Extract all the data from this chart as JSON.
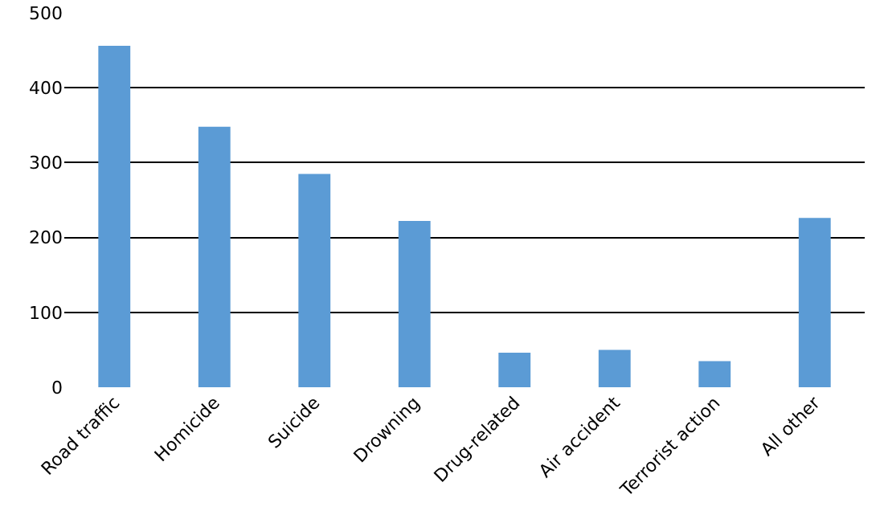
{
  "chart_data": {
    "type": "bar",
    "categories": [
      "Road traffic",
      "Homicide",
      "Suicide",
      "Drowning",
      "Drug-related",
      "Air accident",
      "Terrorist action",
      "All other"
    ],
    "values": [
      456,
      348,
      285,
      222,
      46,
      50,
      35,
      226
    ],
    "color": "#5b9bd5",
    "ylim": [
      0,
      500
    ],
    "yticks": [
      0,
      100,
      200,
      300,
      400,
      500
    ],
    "grid": "y",
    "legend": false
  }
}
